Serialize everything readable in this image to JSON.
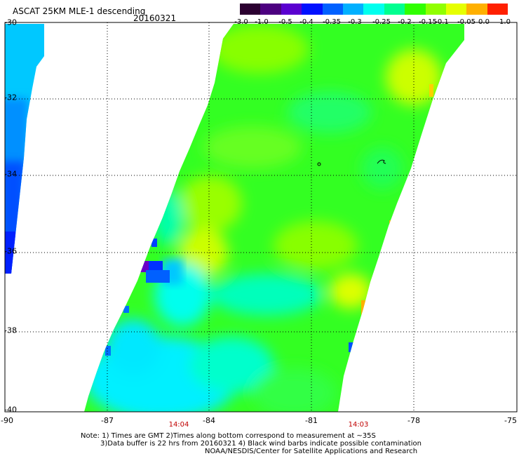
{
  "header": {
    "title": "ASCAT 25KM MLE-1 descending",
    "date": "20160321"
  },
  "colorbar": {
    "labels": [
      "-3.0",
      "-1.0",
      "-0.5",
      "-0.4",
      "-0.35",
      "-0.3",
      "-0.25",
      "-0.2",
      "-0.15",
      "-0.1",
      "-0.05",
      "0.0",
      "1.0"
    ],
    "colors": [
      "#2b0030",
      "#4c0080",
      "#5a00d0",
      "#0010ff",
      "#0060ff",
      "#00b0ff",
      "#00ffee",
      "#00ff90",
      "#30ff00",
      "#90ff00",
      "#e6ff00",
      "#ffb000",
      "#ff2000"
    ]
  },
  "map": {
    "lat_labels": [
      "-30",
      "-32",
      "-34",
      "-36",
      "-38",
      "-40"
    ],
    "lon_labels": [
      "-90",
      "-87",
      "-84",
      "-81",
      "-78",
      "-75"
    ],
    "time_labels": [
      "14:04",
      "14:03"
    ],
    "lat_range": [
      -40,
      -30
    ],
    "lon_range": [
      -90,
      -75
    ],
    "grid": true
  },
  "notes": {
    "line1": "Note: 1) Times are GMT 2)Times along bottom correspond to measurement at ~35S",
    "line2": "3)Data buffer is 22 hrs from 20160321 4) Black wind barbs indicate possible contamination",
    "line3": "NOAA/NESDIS/Center for Satellite Applications and Research"
  }
}
